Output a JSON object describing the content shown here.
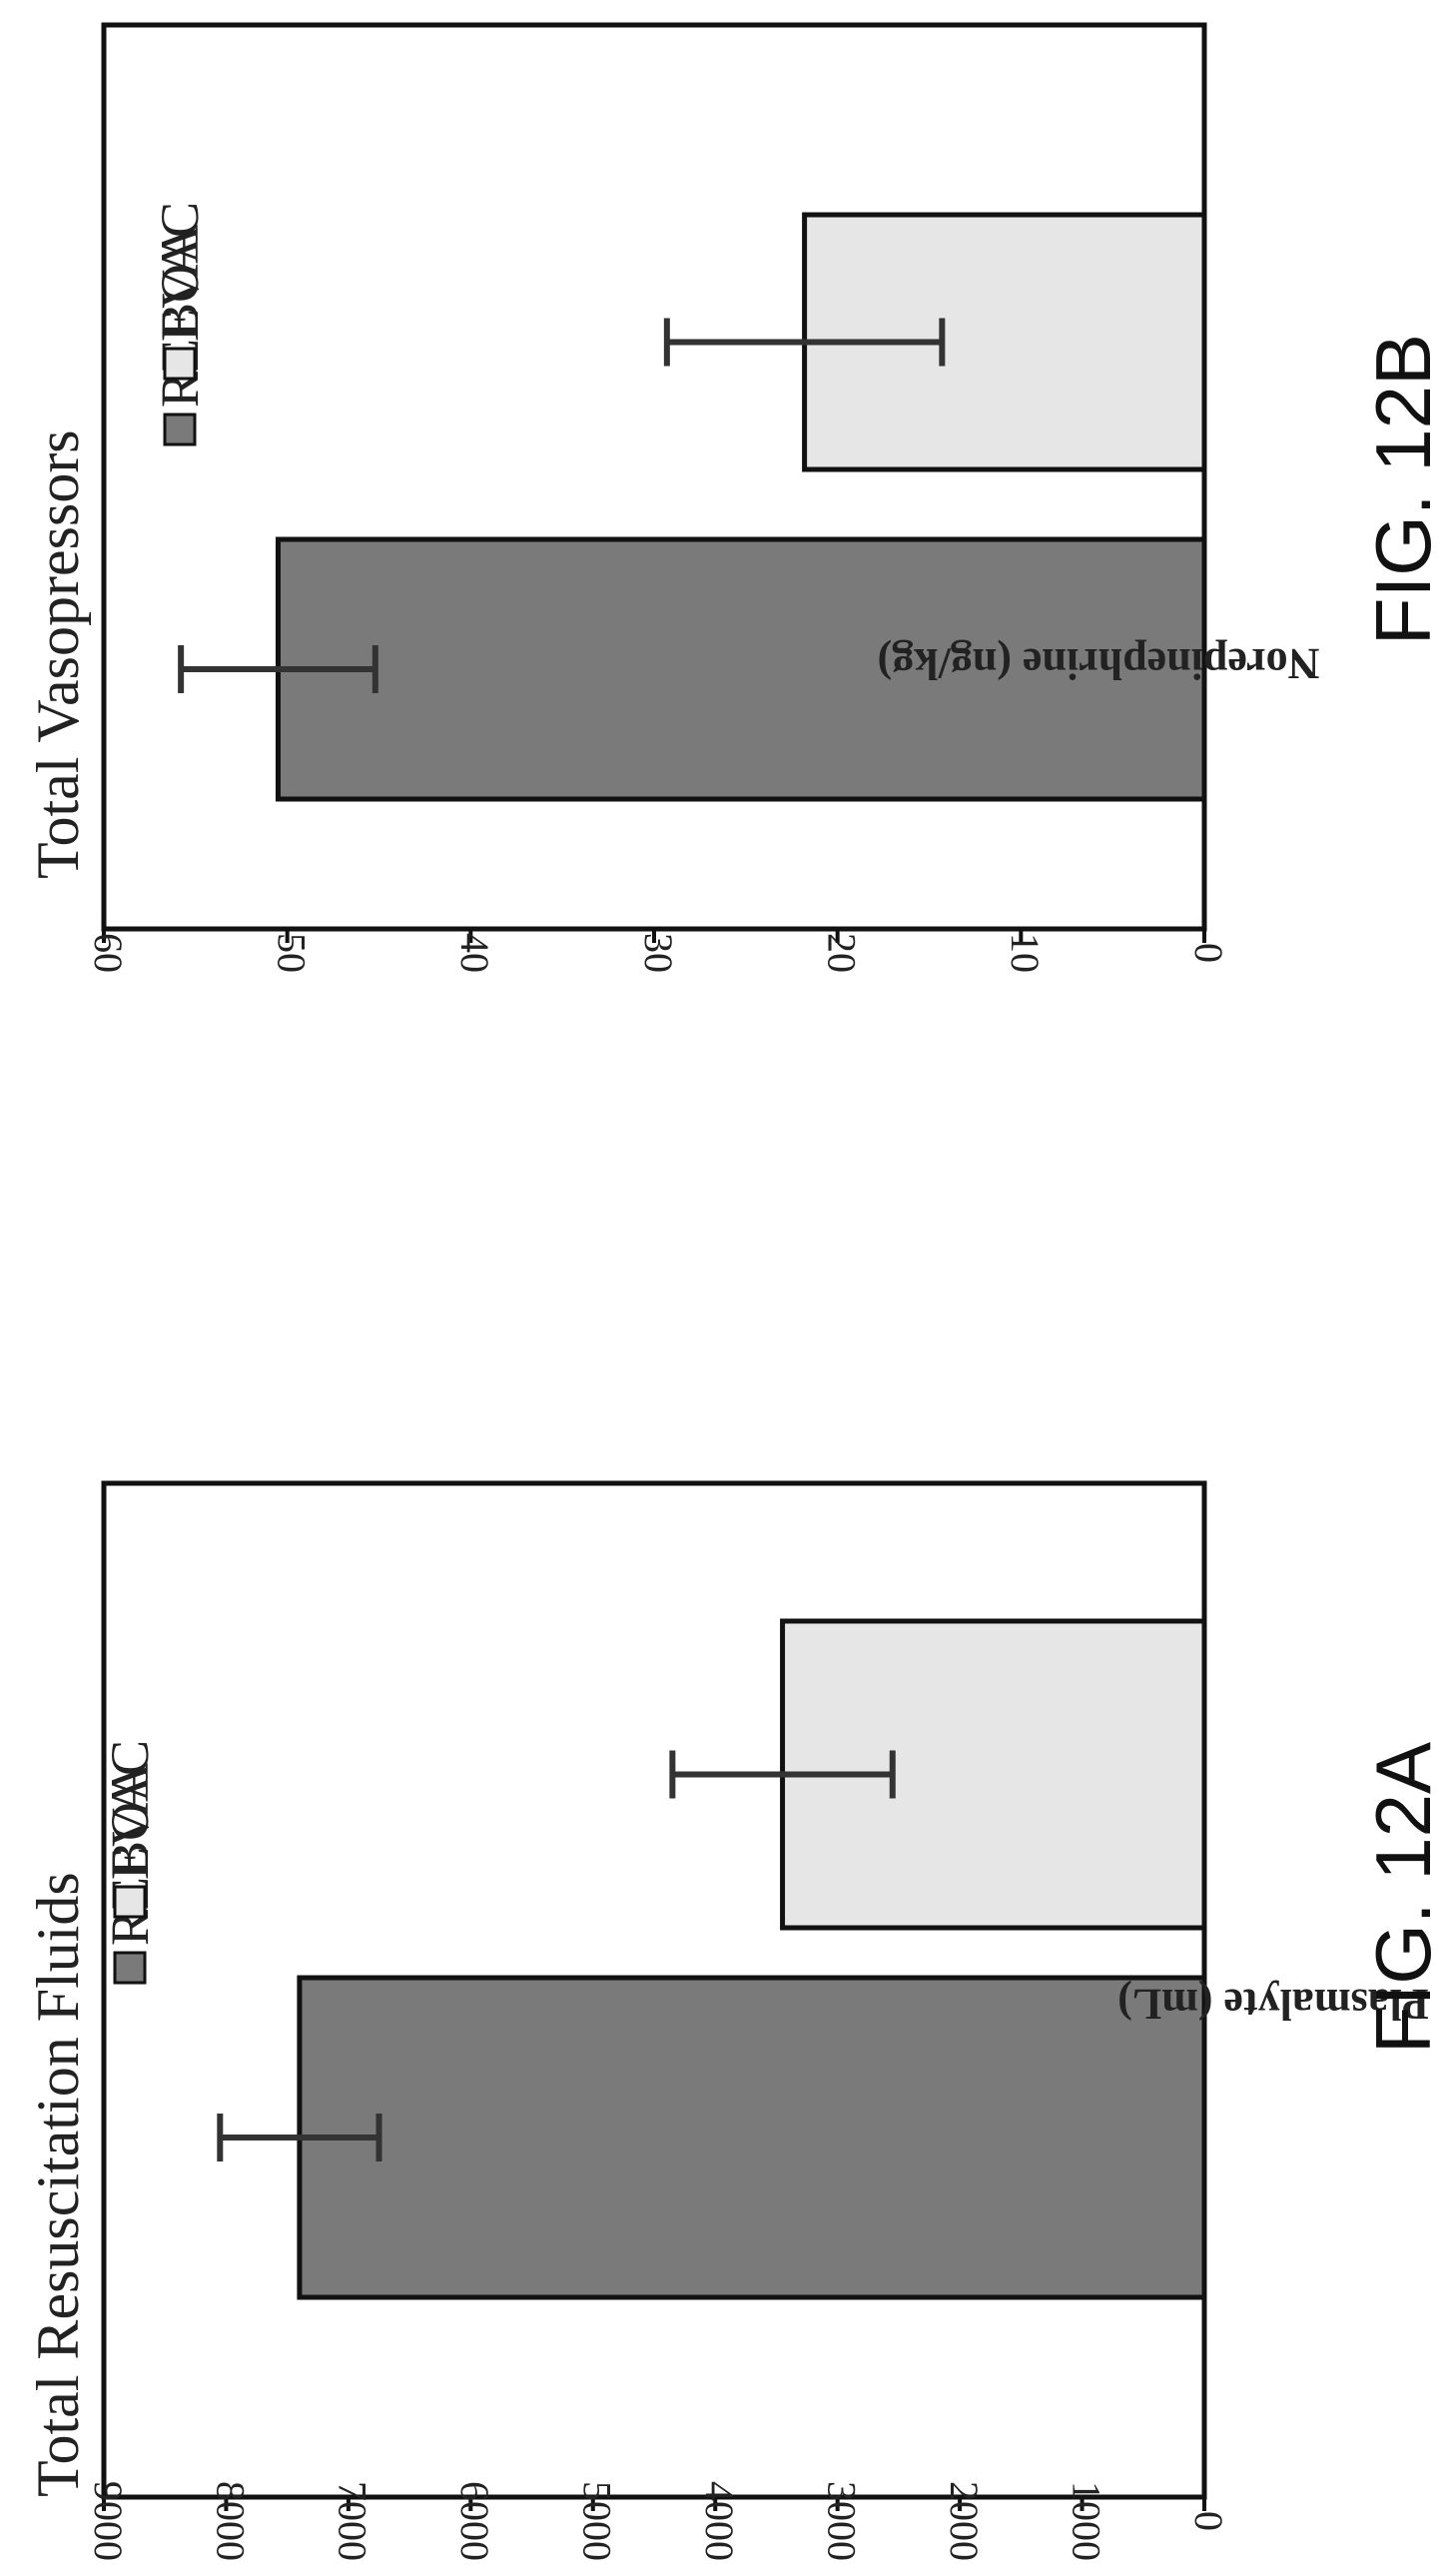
{
  "chart_data": [
    {
      "type": "bar",
      "title": "Total Resuscitation Fluids",
      "ylabel": "Plasmalyte (mL)",
      "xlabel": "",
      "ylim": [
        0,
        9000
      ],
      "yticks": [
        "0",
        "1000",
        "2000",
        "3000",
        "4000",
        "5000",
        "6000",
        "7000",
        "8000",
        "9000"
      ],
      "grid": false,
      "legend_position": "top-right",
      "series": [
        {
          "name": "REBOA",
          "value": 7400,
          "error": 650,
          "color": "#7a7a7a"
        },
        {
          "name": "EVAC",
          "value": 3450,
          "error": 900,
          "color": "#e6e6e6"
        }
      ],
      "figure_label": "FIG. 12A"
    },
    {
      "type": "bar",
      "title": "Total Vasopressors",
      "ylabel": "Norepinephrine (ng/kg)",
      "xlabel": "",
      "ylim": [
        0,
        60
      ],
      "yticks": [
        "0",
        "10",
        "20",
        "30",
        "40",
        "50",
        "60"
      ],
      "grid": false,
      "legend_position": "top-right",
      "series": [
        {
          "name": "REBOA",
          "value": 50.5,
          "error": 5.3,
          "color": "#7a7a7a"
        },
        {
          "name": "EVAC",
          "value": 21.8,
          "error": 7.5,
          "color": "#e6e6e6"
        }
      ],
      "figure_label": "FIG. 12B"
    }
  ]
}
